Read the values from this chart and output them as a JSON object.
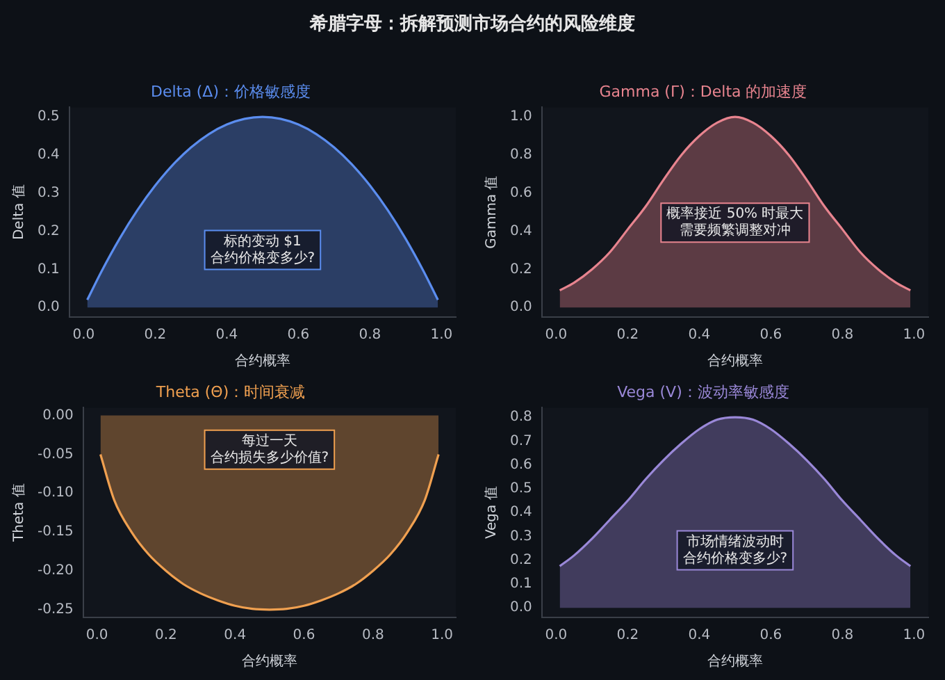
{
  "chart_data": [
    {
      "type": "other",
      "title": "希腊字母：拆解预测市场合约的风险维度"
    },
    {
      "type": "area",
      "title": "Delta (Δ)：价格敏感度",
      "xlabel": "合约概率",
      "ylabel": "Delta 值",
      "annotations": [
        "标的变动 $1",
        "合约价格变多少?"
      ],
      "grid": false,
      "legend": false,
      "x": [
        0.01,
        0.05,
        0.1,
        0.15,
        0.2,
        0.25,
        0.3,
        0.35,
        0.4,
        0.45,
        0.5,
        0.55,
        0.6,
        0.65,
        0.7,
        0.75,
        0.8,
        0.85,
        0.9,
        0.95,
        0.99
      ],
      "xlim": [
        -0.04,
        1.04
      ],
      "xticks": [
        {
          "value": 0,
          "label": "0.0"
        },
        {
          "value": 0.2,
          "label": "0.2"
        },
        {
          "value": 0.4,
          "label": "0.4"
        },
        {
          "value": 0.6,
          "label": "0.6"
        },
        {
          "value": 0.8,
          "label": "0.8"
        },
        {
          "value": 1,
          "label": "1.0"
        }
      ],
      "ylim": [
        -0.025,
        0.525
      ],
      "yticks": [
        {
          "value": 0,
          "label": "0.0"
        },
        {
          "value": 0.1,
          "label": "0.1"
        },
        {
          "value": 0.2,
          "label": "0.2"
        },
        {
          "value": 0.3,
          "label": "0.3"
        },
        {
          "value": 0.4,
          "label": "0.4"
        },
        {
          "value": 0.5,
          "label": "0.5"
        }
      ],
      "series": [
        {
          "color": "#5b8def",
          "values": [
            0.02,
            0.095,
            0.18,
            0.255,
            0.32,
            0.375,
            0.42,
            0.455,
            0.48,
            0.495,
            0.5,
            0.495,
            0.48,
            0.455,
            0.42,
            0.375,
            0.32,
            0.255,
            0.18,
            0.095,
            0.02
          ]
        }
      ]
    },
    {
      "type": "area",
      "title": "Gamma (Γ)：Delta 的加速度",
      "xlabel": "合约概率",
      "ylabel": "Gamma 值",
      "annotations": [
        "概率接近 50% 时最大",
        "需要频繁调整对冲"
      ],
      "grid": false,
      "legend": false,
      "x": [
        0.01,
        0.05,
        0.1,
        0.15,
        0.2,
        0.25,
        0.3,
        0.35,
        0.4,
        0.45,
        0.5,
        0.55,
        0.6,
        0.65,
        0.7,
        0.75,
        0.8,
        0.85,
        0.9,
        0.95,
        0.99
      ],
      "xlim": [
        -0.04,
        1.04
      ],
      "xticks": [
        {
          "value": 0,
          "label": "0.0"
        },
        {
          "value": 0.2,
          "label": "0.2"
        },
        {
          "value": 0.4,
          "label": "0.4"
        },
        {
          "value": 0.6,
          "label": "0.6"
        },
        {
          "value": 0.8,
          "label": "0.8"
        },
        {
          "value": 1,
          "label": "1.0"
        }
      ],
      "ylim": [
        -0.05,
        1.05
      ],
      "yticks": [
        {
          "value": 0,
          "label": "0.0"
        },
        {
          "value": 0.2,
          "label": "0.2"
        },
        {
          "value": 0.4,
          "label": "0.4"
        },
        {
          "value": 0.6,
          "label": "0.6"
        },
        {
          "value": 0.8,
          "label": "0.8"
        },
        {
          "value": 1,
          "label": "1.0"
        }
      ],
      "series": [
        {
          "color": "#e8848f",
          "values": [
            0.09,
            0.13,
            0.2,
            0.29,
            0.41,
            0.53,
            0.67,
            0.8,
            0.9,
            0.97,
            1.0,
            0.97,
            0.9,
            0.8,
            0.67,
            0.53,
            0.41,
            0.29,
            0.2,
            0.13,
            0.09
          ]
        }
      ]
    },
    {
      "type": "area",
      "title": "Theta (Θ)：时间衰减",
      "xlabel": "合约概率",
      "ylabel": "Theta 值",
      "annotations": [
        "每过一天",
        "合约损失多少价值?"
      ],
      "grid": false,
      "legend": false,
      "x": [
        0.01,
        0.05,
        0.1,
        0.15,
        0.2,
        0.25,
        0.3,
        0.35,
        0.4,
        0.45,
        0.5,
        0.55,
        0.6,
        0.65,
        0.7,
        0.75,
        0.8,
        0.85,
        0.9,
        0.95,
        0.99
      ],
      "xlim": [
        -0.04,
        1.04
      ],
      "xticks": [
        {
          "value": 0,
          "label": "0.0"
        },
        {
          "value": 0.2,
          "label": "0.2"
        },
        {
          "value": 0.4,
          "label": "0.4"
        },
        {
          "value": 0.6,
          "label": "0.6"
        },
        {
          "value": 0.8,
          "label": "0.8"
        },
        {
          "value": 1,
          "label": "1.0"
        }
      ],
      "ylim": [
        -0.26,
        0.01
      ],
      "yticks": [
        {
          "value": 0,
          "label": "0.00"
        },
        {
          "value": -0.05,
          "label": "-0.05"
        },
        {
          "value": -0.1,
          "label": "-0.10"
        },
        {
          "value": -0.15,
          "label": "-0.15"
        },
        {
          "value": -0.2,
          "label": "-0.20"
        },
        {
          "value": -0.25,
          "label": "-0.25"
        }
      ],
      "series": [
        {
          "color": "#f0a050",
          "values": [
            -0.05,
            -0.109,
            -0.15,
            -0.179,
            -0.2,
            -0.217,
            -0.229,
            -0.238,
            -0.245,
            -0.249,
            -0.25,
            -0.249,
            -0.245,
            -0.238,
            -0.229,
            -0.217,
            -0.2,
            -0.179,
            -0.15,
            -0.109,
            -0.05
          ]
        }
      ]
    },
    {
      "type": "area",
      "title": "Vega (V)：波动率敏感度",
      "xlabel": "合约概率",
      "ylabel": "Vega 值",
      "annotations": [
        "市场情绪波动时",
        "合约价格变多少?"
      ],
      "grid": false,
      "legend": false,
      "x": [
        0.01,
        0.05,
        0.1,
        0.15,
        0.2,
        0.25,
        0.3,
        0.35,
        0.4,
        0.45,
        0.5,
        0.55,
        0.6,
        0.65,
        0.7,
        0.75,
        0.8,
        0.85,
        0.9,
        0.95,
        0.99
      ],
      "xlim": [
        -0.04,
        1.04
      ],
      "xticks": [
        {
          "value": 0,
          "label": "0.0"
        },
        {
          "value": 0.2,
          "label": "0.2"
        },
        {
          "value": 0.4,
          "label": "0.4"
        },
        {
          "value": 0.6,
          "label": "0.6"
        },
        {
          "value": 0.8,
          "label": "0.8"
        },
        {
          "value": 1,
          "label": "1.0"
        }
      ],
      "ylim": [
        -0.04,
        0.84
      ],
      "yticks": [
        {
          "value": 0,
          "label": "0.0"
        },
        {
          "value": 0.1,
          "label": "0.1"
        },
        {
          "value": 0.2,
          "label": "0.2"
        },
        {
          "value": 0.3,
          "label": "0.3"
        },
        {
          "value": 0.4,
          "label": "0.4"
        },
        {
          "value": 0.5,
          "label": "0.5"
        },
        {
          "value": 0.6,
          "label": "0.6"
        },
        {
          "value": 0.7,
          "label": "0.7"
        },
        {
          "value": 0.8,
          "label": "0.8"
        }
      ],
      "series": [
        {
          "color": "#9a88d8",
          "values": [
            0.175,
            0.22,
            0.29,
            0.37,
            0.45,
            0.54,
            0.62,
            0.69,
            0.75,
            0.79,
            0.8,
            0.79,
            0.75,
            0.69,
            0.62,
            0.54,
            0.45,
            0.37,
            0.29,
            0.22,
            0.175
          ]
        }
      ]
    }
  ]
}
